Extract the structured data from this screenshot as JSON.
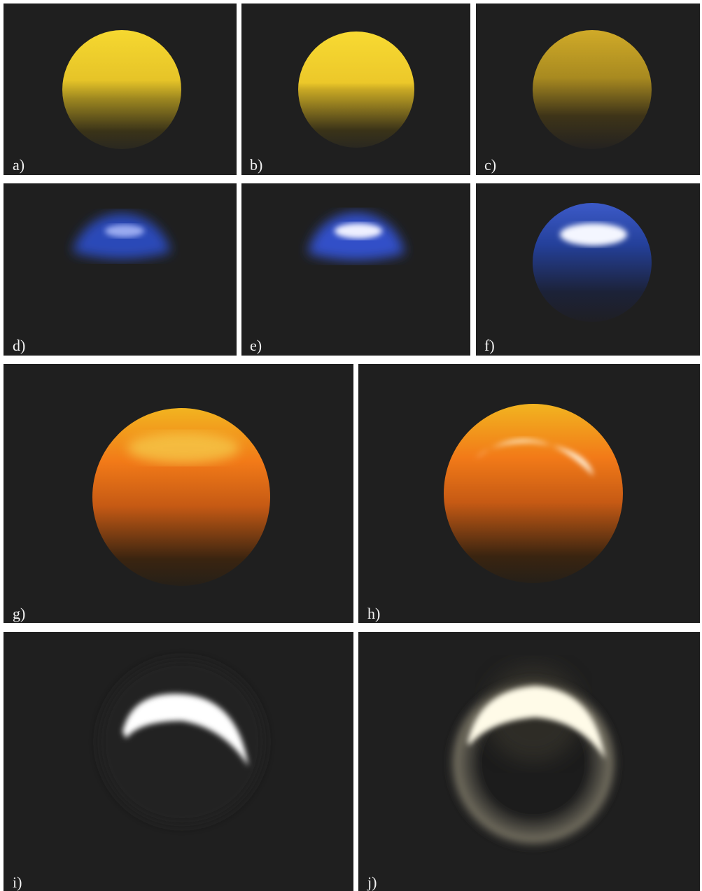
{
  "panels": [
    {
      "label": "a)"
    },
    {
      "label": "b)"
    },
    {
      "label": "c)"
    },
    {
      "label": "d)"
    },
    {
      "label": "e)"
    },
    {
      "label": "f)"
    },
    {
      "label": "g)"
    },
    {
      "label": "h)"
    },
    {
      "label": "i)"
    },
    {
      "label": "j)"
    }
  ]
}
